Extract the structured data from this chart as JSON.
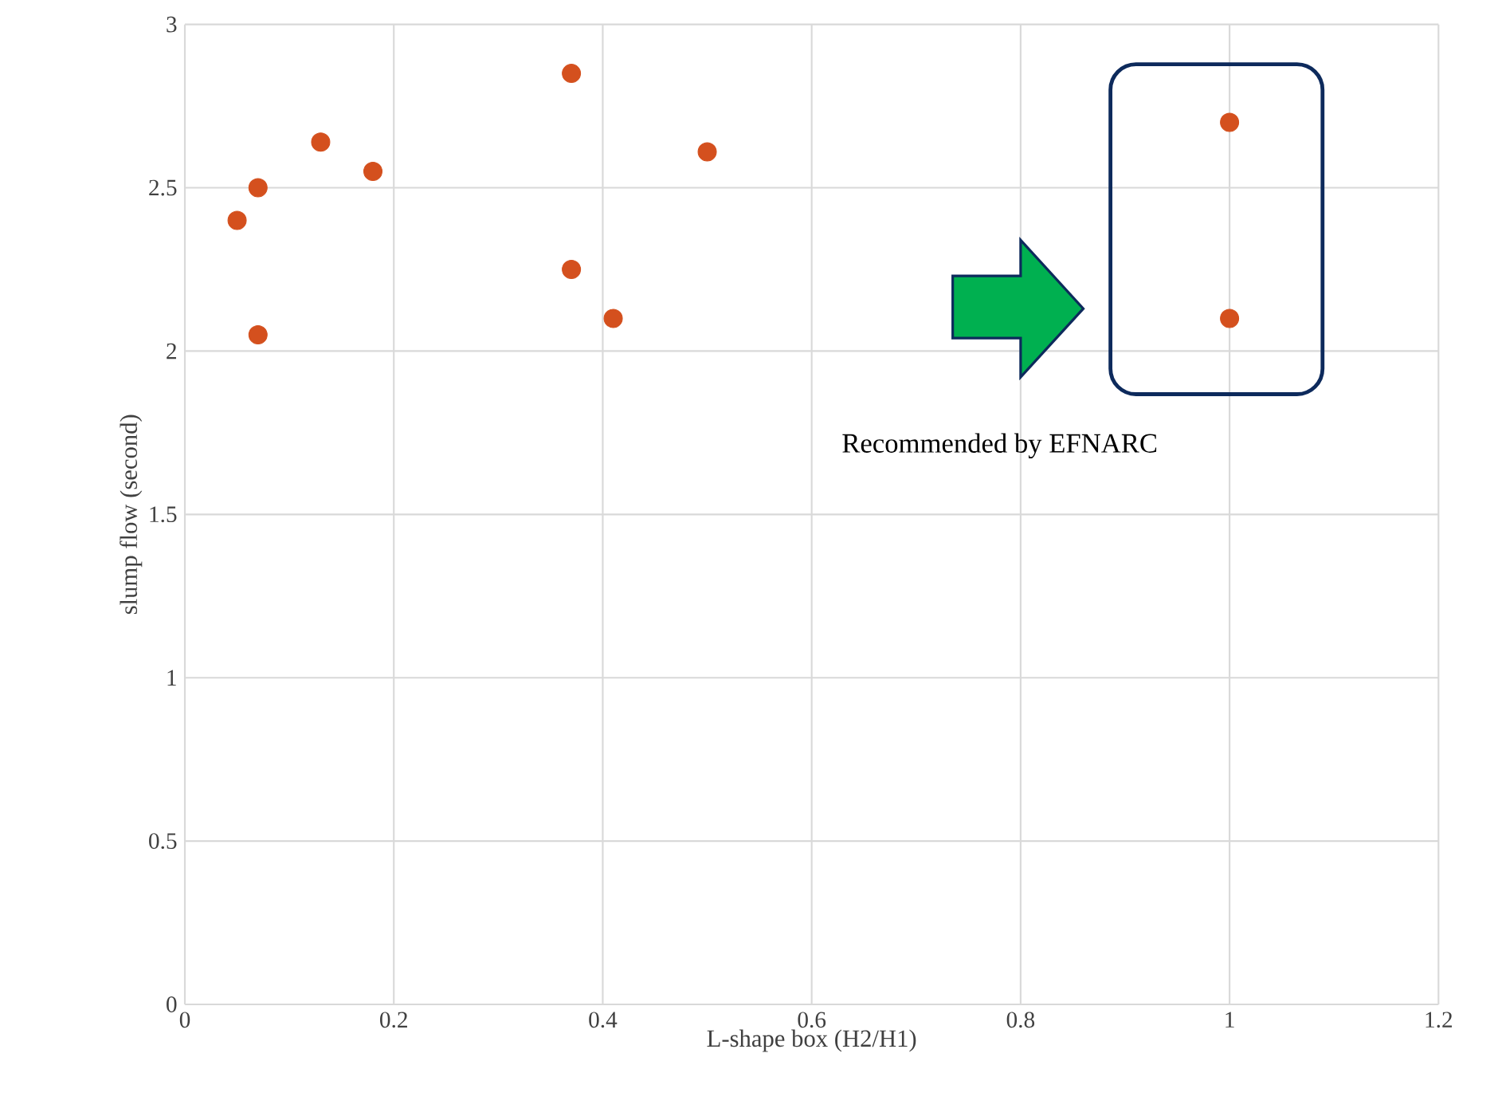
{
  "chart_data": {
    "type": "scatter",
    "xlabel": "L-shape box (H2/H1)",
    "ylabel": "slump flow (second)",
    "x": [
      0.05,
      0.07,
      0.07,
      0.13,
      0.18,
      0.37,
      0.37,
      0.41,
      0.5,
      1.0,
      1.0
    ],
    "series": [
      {
        "color": "#d4501e",
        "values": [
          2.4,
          2.5,
          2.05,
          2.64,
          2.55,
          2.85,
          2.25,
          2.1,
          2.61,
          2.7,
          2.1
        ]
      }
    ],
    "xlim": [
      0,
      1.2
    ],
    "ylim": [
      0,
      3
    ],
    "xticks": [
      0,
      0.2,
      0.4,
      0.6,
      0.8,
      1,
      1.2
    ],
    "yticks": [
      0,
      0.5,
      1,
      1.5,
      2,
      2.5,
      3
    ],
    "grid": true,
    "marker": "circle",
    "annotations": [
      "Recommended by EFNARC"
    ]
  }
}
